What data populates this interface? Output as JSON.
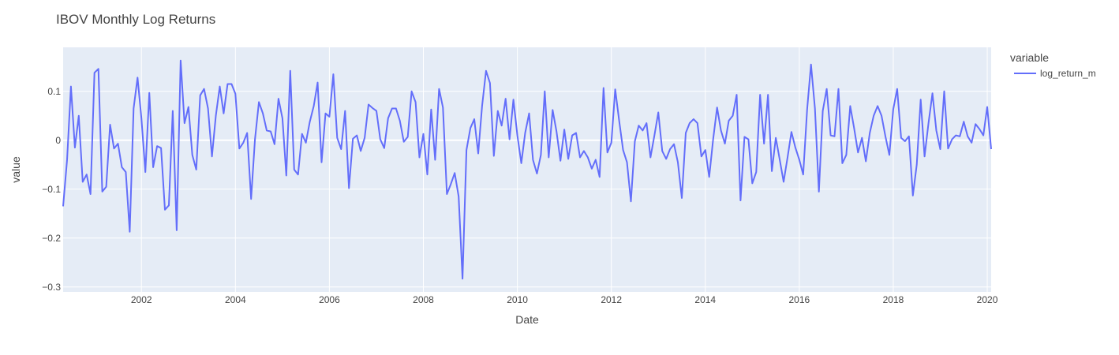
{
  "chart_data": {
    "type": "line",
    "title": "IBOV Monthly Log Returns",
    "xlabel": "Date",
    "ylabel": "value",
    "x_start": "2000-05",
    "x_end": "2020-02",
    "xlim": [
      "2000-05",
      "2020-02"
    ],
    "ylim": [
      -0.31,
      0.19
    ],
    "x_ticks": [
      "2002",
      "2004",
      "2006",
      "2008",
      "2010",
      "2012",
      "2014",
      "2016",
      "2018",
      "2020"
    ],
    "y_ticks": [
      "0.1",
      "0",
      "−0.1",
      "−0.2",
      "−0.3"
    ],
    "y_tick_values": [
      0.1,
      0,
      -0.1,
      -0.2,
      -0.3
    ],
    "grid": true,
    "legend": {
      "title": "variable",
      "placement": "top-right"
    },
    "series": [
      {
        "name": "log_return_m",
        "color": "#636efa",
        "values": [
          -0.135,
          -0.04,
          0.11,
          -0.015,
          0.05,
          -0.085,
          -0.07,
          -0.11,
          0.138,
          0.146,
          -0.105,
          -0.095,
          0.032,
          -0.017,
          -0.007,
          -0.055,
          -0.065,
          -0.187,
          0.065,
          0.128,
          0.045,
          -0.065,
          0.097,
          -0.055,
          -0.012,
          -0.016,
          -0.142,
          -0.133,
          0.06,
          -0.184,
          0.163,
          0.035,
          0.068,
          -0.03,
          -0.06,
          0.092,
          0.105,
          0.065,
          -0.033,
          0.05,
          0.11,
          0.055,
          0.115,
          0.115,
          0.095,
          -0.017,
          -0.005,
          0.015,
          -0.12,
          0.002,
          0.078,
          0.055,
          0.02,
          0.018,
          -0.008,
          0.085,
          0.045,
          -0.072,
          0.142,
          -0.06,
          -0.07,
          0.013,
          -0.005,
          0.038,
          0.07,
          0.118,
          -0.045,
          0.055,
          0.048,
          0.135,
          0.005,
          -0.018,
          0.06,
          -0.098,
          0.003,
          0.01,
          -0.022,
          0.005,
          0.073,
          0.066,
          0.06,
          0.002,
          -0.016,
          0.045,
          0.065,
          0.065,
          0.04,
          -0.003,
          0.007,
          0.1,
          0.078,
          -0.035,
          0.013,
          -0.07,
          0.063,
          -0.04,
          0.105,
          0.067,
          -0.11,
          -0.09,
          -0.067,
          -0.115,
          -0.283,
          -0.02,
          0.025,
          0.043,
          -0.027,
          0.07,
          0.142,
          0.117,
          -0.032,
          0.06,
          0.03,
          0.085,
          0.002,
          0.083,
          0.01,
          -0.047,
          0.015,
          0.055,
          -0.04,
          -0.068,
          -0.03,
          0.1,
          -0.035,
          0.062,
          0.018,
          -0.042,
          0.022,
          -0.038,
          0.01,
          0.015,
          -0.035,
          -0.022,
          -0.035,
          -0.058,
          -0.04,
          -0.075,
          0.107,
          -0.025,
          -0.005,
          0.104,
          0.04,
          -0.02,
          -0.045,
          -0.125,
          -0.002,
          0.03,
          0.02,
          0.035,
          -0.035,
          0.01,
          0.057,
          -0.022,
          -0.038,
          -0.018,
          -0.008,
          -0.045,
          -0.118,
          0.015,
          0.035,
          0.043,
          0.035,
          -0.033,
          -0.02,
          -0.075,
          0.002,
          0.067,
          0.02,
          -0.007,
          0.04,
          0.05,
          0.093,
          -0.123,
          0.007,
          0.002,
          -0.088,
          -0.065,
          0.093,
          -0.007,
          0.093,
          -0.063,
          0.005,
          -0.04,
          -0.085,
          -0.035,
          0.017,
          -0.015,
          -0.04,
          -0.07,
          0.063,
          0.155,
          0.065,
          -0.105,
          0.06,
          0.105,
          0.01,
          0.008,
          0.105,
          -0.047,
          -0.03,
          0.07,
          0.025,
          -0.025,
          0.005,
          -0.043,
          0.015,
          0.05,
          0.07,
          0.05,
          0.008,
          -0.03,
          0.063,
          0.105,
          0.005,
          -0.002,
          0.008,
          -0.113,
          -0.05,
          0.083,
          -0.033,
          0.035,
          0.096,
          0.02,
          -0.018,
          0.1,
          -0.017,
          0.002,
          0.01,
          0.008,
          0.038,
          0.008,
          -0.005,
          0.033,
          0.023,
          0.01,
          0.068,
          -0.018
        ]
      }
    ]
  }
}
